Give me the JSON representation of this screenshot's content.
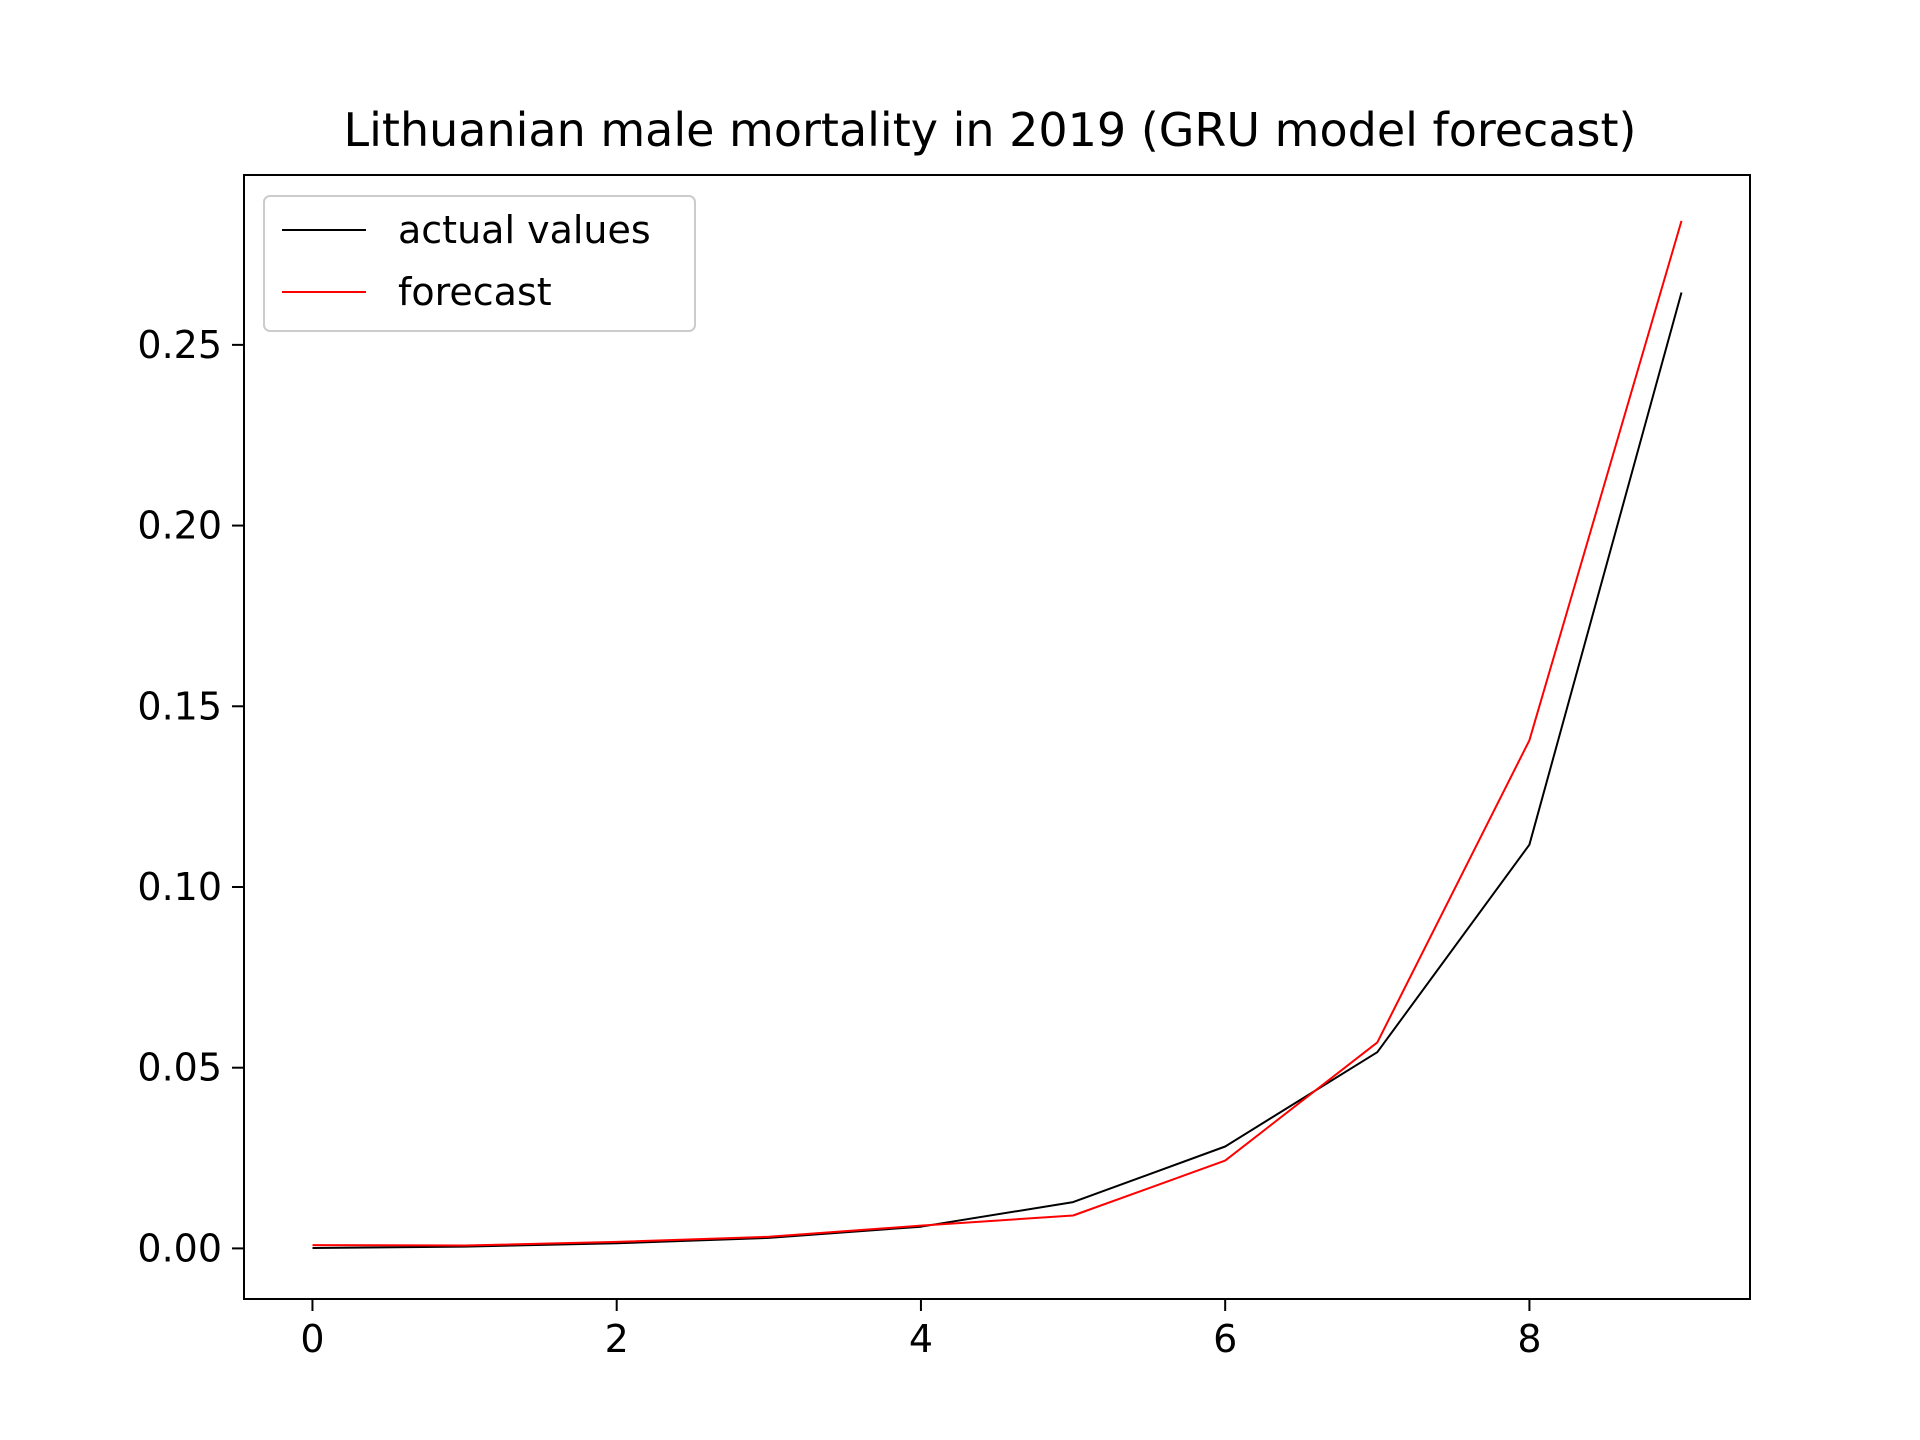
{
  "chart_data": {
    "type": "line",
    "title": "Lithuanian male mortality in 2019 (GRU model forecast)",
    "xlabel": "",
    "ylabel": "",
    "x": [
      0,
      1,
      2,
      3,
      4,
      5,
      6,
      7,
      8,
      9
    ],
    "series": [
      {
        "name": "actual values",
        "color": "#000000",
        "values": [
          0.0001,
          0.0005,
          0.0014,
          0.0029,
          0.006,
          0.0128,
          0.0282,
          0.0543,
          0.1117,
          0.2645
        ]
      },
      {
        "name": "forecast",
        "color": "#ff0000",
        "values": [
          0.0009,
          0.0008,
          0.0018,
          0.0032,
          0.0063,
          0.0091,
          0.0243,
          0.057,
          0.1406,
          0.2843
        ]
      }
    ],
    "xlim": [
      -0.45,
      9.45
    ],
    "ylim": [
      -0.014,
      0.297
    ],
    "xticks": [
      0,
      2,
      4,
      6,
      8
    ],
    "xtick_labels": [
      "0",
      "2",
      "4",
      "6",
      "8"
    ],
    "yticks": [
      0.0,
      0.05,
      0.1,
      0.15,
      0.2,
      0.25
    ],
    "ytick_labels": [
      "0.00",
      "0.05",
      "0.10",
      "0.15",
      "0.20",
      "0.25"
    ],
    "grid": false,
    "legend_position": "top-left"
  }
}
